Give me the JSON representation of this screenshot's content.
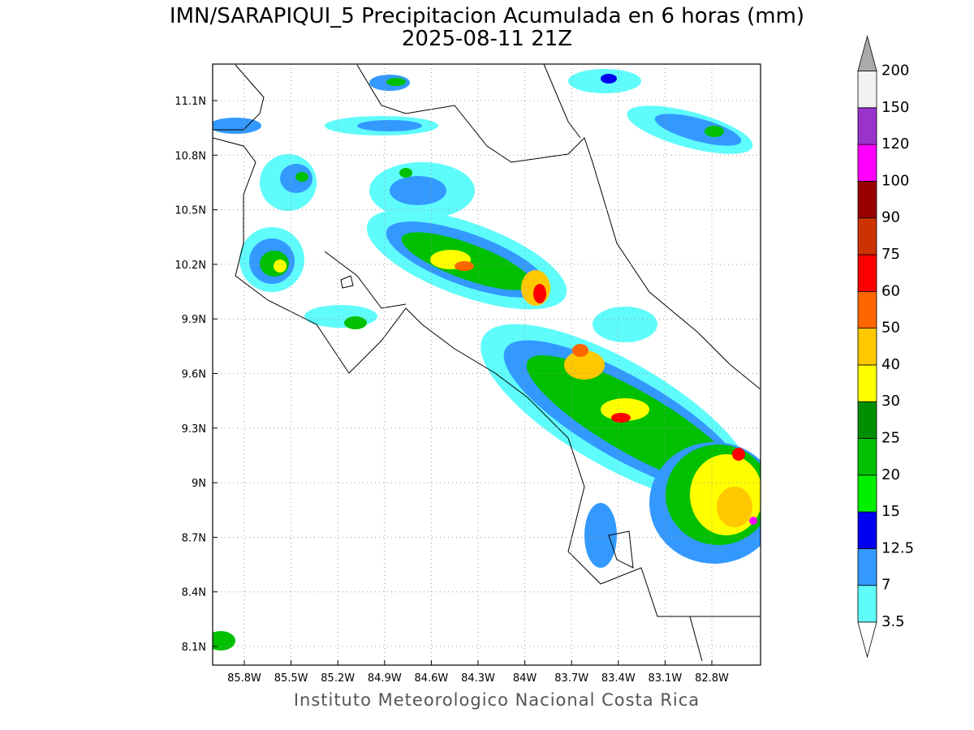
{
  "header": {
    "title": "IMN/SARAPIQUI_5 Precipitacion Acumulada en 6 horas (mm)",
    "subtitle": "2025-08-11 21Z"
  },
  "map": {
    "lat_ticks": [
      "11.1N",
      "10.8N",
      "10.5N",
      "10.2N",
      "9.9N",
      "9.6N",
      "9.3N",
      "9N",
      "8.7N",
      "8.4N",
      "8.1N"
    ],
    "lon_ticks": [
      "85.8W",
      "85.5W",
      "85.2W",
      "84.9W",
      "84.6W",
      "84.3W",
      "84W",
      "83.7W",
      "83.4W",
      "83.1W",
      "82.8W"
    ]
  },
  "colorbar": {
    "levels": [
      3.5,
      7,
      12.5,
      15,
      20,
      25,
      30,
      40,
      50,
      60,
      75,
      90,
      100,
      120,
      150,
      200
    ],
    "colors": [
      "#5ffcfc",
      "#3399ff",
      "#0000f0",
      "#00f000",
      "#00c000",
      "#008f00",
      "#ffff00",
      "#ffc800",
      "#ff6600",
      "#ff0000",
      "#cc3300",
      "#990000",
      "#ff00ff",
      "#9933cc",
      "#f2f2f2"
    ],
    "under_color": "#ffffff",
    "over_color": "#aaaaaa"
  },
  "footer": "Instituto Meteorologico Nacional Costa Rica"
}
